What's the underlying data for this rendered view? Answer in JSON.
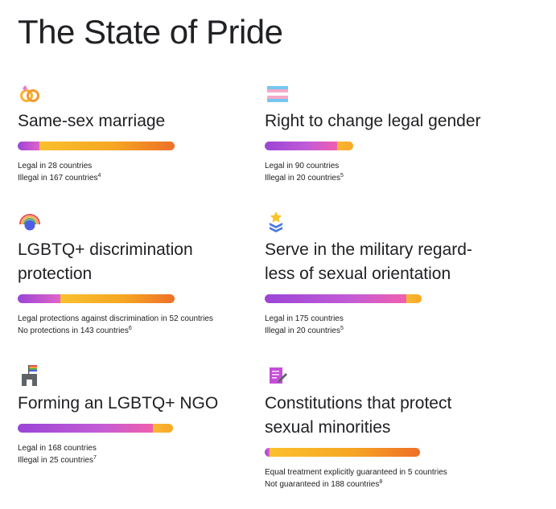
{
  "title": "The State of Pride",
  "cards": [
    {
      "icon": "rings-icon",
      "heading": "Same-sex marriage",
      "bar": {
        "purple_fraction": 0.14,
        "orange_fraction": 0.86
      },
      "line1": "Legal in 28 countries",
      "line2": "Illegal in 167 countries",
      "footnote2": "4"
    },
    {
      "icon": "trans-flag-icon",
      "heading": "Right to change legal gender",
      "bar": {
        "purple_fraction": 0.82,
        "orange_fraction": 0.18
      },
      "line1": "Legal in 90 countries",
      "line2": "Illegal in 20 countries",
      "footnote2": "5"
    },
    {
      "icon": "rainbow-icon",
      "heading": "LGBTQ+ discrimination\nprotection",
      "bar": {
        "purple_fraction": 0.27,
        "orange_fraction": 0.73
      },
      "line1": "Legal protections against discrimination in 52 countries",
      "line2": "No protections in 143 countries",
      "footnote2": "6"
    },
    {
      "icon": "military-star-icon",
      "heading": "Serve in the military regard-\nless of sexual orientation",
      "bar": {
        "purple_fraction": 0.9,
        "orange_fraction": 0.1
      },
      "line1": "Legal in 175 countries",
      "line2": "Illegal in 20 countries",
      "footnote2": "5"
    },
    {
      "icon": "building-flag-icon",
      "heading": "Forming an LGBTQ+ NGO",
      "bar": {
        "purple_fraction": 0.87,
        "orange_fraction": 0.13
      },
      "line1": "Legal in 168 countries",
      "line2": "Illegal in 25 countries",
      "footnote2": "7"
    },
    {
      "icon": "document-pen-icon",
      "heading": "Constitutions that protect\nsexual minorities",
      "bar": {
        "purple_fraction": 0.03,
        "orange_fraction": 0.97
      },
      "line1": "Equal treatment explicitly guaranteed in 5 countries",
      "line2": "Not guaranteed in 188 countries",
      "footnote2": "8"
    }
  ]
}
